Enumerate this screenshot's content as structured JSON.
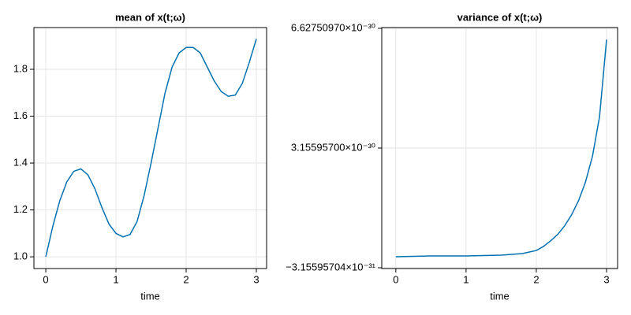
{
  "chart_data": [
    {
      "type": "line",
      "title": "mean of x(t;ω)",
      "x_label": "time",
      "x": [
        0,
        0.1,
        0.2,
        0.3,
        0.4,
        0.5,
        0.6,
        0.7,
        0.8,
        0.9,
        1.0,
        1.1,
        1.2,
        1.3,
        1.4,
        1.5,
        1.6,
        1.7,
        1.8,
        1.9,
        2.0,
        2.1,
        2.2,
        2.3,
        2.4,
        2.5,
        2.6,
        2.7,
        2.8,
        2.9,
        3.0
      ],
      "series": [
        {
          "color": "#0072b2",
          "values": [
            1.0,
            1.13,
            1.24,
            1.32,
            1.365,
            1.375,
            1.35,
            1.29,
            1.21,
            1.14,
            1.1,
            1.085,
            1.095,
            1.15,
            1.26,
            1.4,
            1.55,
            1.7,
            1.81,
            1.87,
            1.893,
            1.893,
            1.87,
            1.81,
            1.75,
            1.705,
            1.685,
            1.69,
            1.74,
            1.83,
            1.93
          ]
        }
      ],
      "xlim": [
        -0.169,
        3.146
      ],
      "xticks": [
        0,
        1,
        2,
        3
      ],
      "ylim": [
        0.95,
        1.978
      ],
      "yticks": [
        {
          "value": 1,
          "label": "1.0"
        },
        1.2,
        1.4,
        1.6,
        1.8
      ],
      "grid": true
    },
    {
      "type": "line",
      "title": "variance of x(t;ω)",
      "x_label": "time",
      "x": [
        0,
        0.5,
        1.0,
        1.5,
        1.8,
        2.0,
        2.1,
        2.2,
        2.3,
        2.4,
        2.5,
        2.6,
        2.7,
        2.8,
        2.9,
        3.0
      ],
      "series": [
        {
          "color": "#0072b2",
          "values": [
            3.4e-33,
            2.6e-32,
            2.6e-32,
            4.9e-32,
            9.5e-32,
            1.86e-31,
            3e-31,
            4.6e-31,
            6.43e-31,
            8.9e-31,
            1.213e-30,
            1.623e-30,
            2.171e-30,
            2.924e-30,
            4.065e-30,
            6.3e-30
          ]
        }
      ],
      "xlim": [
        -0.2,
        3.157
      ],
      "xticks": [
        0,
        1,
        2,
        3
      ],
      "ylim": [
        -3.38e-31,
        6.65e-30
      ],
      "yticks": [
        {
          "value": -3.15595704e-31,
          "label": "−3.15595704×10⁻³¹"
        },
        {
          "value": 3.155957e-30,
          "label": "3.15595700×10⁻³⁰"
        },
        {
          "value": 6.6275097e-30,
          "label": "6.62750970×10⁻³⁰"
        }
      ],
      "grid": true
    }
  ]
}
